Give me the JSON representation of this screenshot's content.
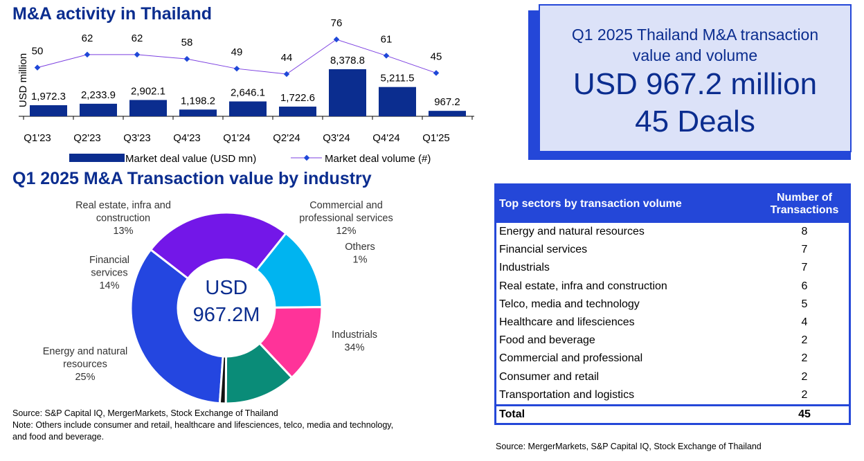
{
  "top_chart": {
    "title": "M&A activity in Thailand",
    "ylabel": "USD million",
    "legend": {
      "bar": "Market deal value (USD mn)",
      "line": "Market deal volume (#)"
    },
    "colors": {
      "bar": "#0b2d8f",
      "line": "#7b3fe0",
      "marker": "#1f48d8"
    }
  },
  "donut": {
    "title": "Q1 2025 M&A Transaction value by industry",
    "center_line1": "USD",
    "center_line2": "967.2M",
    "labels": [
      {
        "lines": [
          "Industrials",
          "34%"
        ]
      },
      {
        "lines": [
          "Energy and natural",
          "resources",
          "25%"
        ]
      },
      {
        "lines": [
          "Financial",
          "services",
          "14%"
        ]
      },
      {
        "lines": [
          "Real estate, infra and",
          "construction",
          "13%"
        ]
      },
      {
        "lines": [
          "Commercial and",
          "professional services",
          "12%"
        ]
      },
      {
        "lines": [
          "Others",
          "1%"
        ]
      }
    ],
    "source": "Source: S&P Capital IQ, MergerMarkets, Stock Exchange of Thailand",
    "note1": "Note: Others include consumer and retail, healthcare and lifesciences, telco, media and technology,",
    "note2": "and food and beverage."
  },
  "chart_data": [
    {
      "type": "bar+line",
      "title": "M&A activity in Thailand",
      "ylabel": "USD million",
      "categories": [
        "Q1'23",
        "Q2'23",
        "Q3'23",
        "Q4'23",
        "Q1'24",
        "Q2'24",
        "Q3'24",
        "Q4'24",
        "Q1'25"
      ],
      "series": [
        {
          "name": "Market deal value (USD mn)",
          "type": "bar",
          "values": [
            1972.3,
            2233.9,
            2902.1,
            1198.2,
            2646.1,
            1722.6,
            8378.8,
            5211.5,
            967.2
          ],
          "labels": [
            "1,972.3",
            "2,233.9",
            "2,902.1",
            "1,198.2",
            "2,646.1",
            "1,722.6",
            "8,378.8",
            "5,211.5",
            "967.2"
          ]
        },
        {
          "name": "Market deal volume (#)",
          "type": "line",
          "values": [
            50,
            62,
            62,
            58,
            49,
            44,
            76,
            61,
            45
          ]
        }
      ],
      "legend": "bottom"
    },
    {
      "type": "pie",
      "title": "Q1 2025 M&A Transaction value by industry",
      "slices": [
        {
          "name": "Industrials",
          "value": 34,
          "color": "#2446e0"
        },
        {
          "name": "Energy and natural resources",
          "value": 25,
          "color": "#7317e8"
        },
        {
          "name": "Financial services",
          "value": 14,
          "color": "#00b4f0"
        },
        {
          "name": "Real estate, infra and construction",
          "value": 13,
          "color": "#ff3399"
        },
        {
          "name": "Commercial and professional services",
          "value": 12,
          "color": "#0a8c78"
        },
        {
          "name": "Others",
          "value": 1,
          "color": "#111111"
        }
      ]
    }
  ],
  "kpi": {
    "line1": "Q1 2025 Thailand M&A transaction",
    "line2": "value and volume",
    "value": "USD 967.2 million",
    "deals": "45 Deals"
  },
  "table": {
    "headers": [
      "Top sectors by transaction volume",
      "Number of Transactions"
    ],
    "rows": [
      [
        "Energy and natural resources",
        "8"
      ],
      [
        "Financial services",
        "7"
      ],
      [
        "Industrials",
        "7"
      ],
      [
        "Real estate, infra and construction",
        "6"
      ],
      [
        "Telco, media and technology",
        "5"
      ],
      [
        "Healthcare and lifesciences",
        "4"
      ],
      [
        "Food and beverage",
        "2"
      ],
      [
        "Commercial and professional",
        "2"
      ],
      [
        "Consumer and retail",
        "2"
      ],
      [
        "Transportation and logistics",
        "2"
      ]
    ],
    "total": [
      "Total",
      "45"
    ],
    "source": "Source: MergerMarkets, S&P Capital IQ, Stock Exchange of Thailand"
  }
}
